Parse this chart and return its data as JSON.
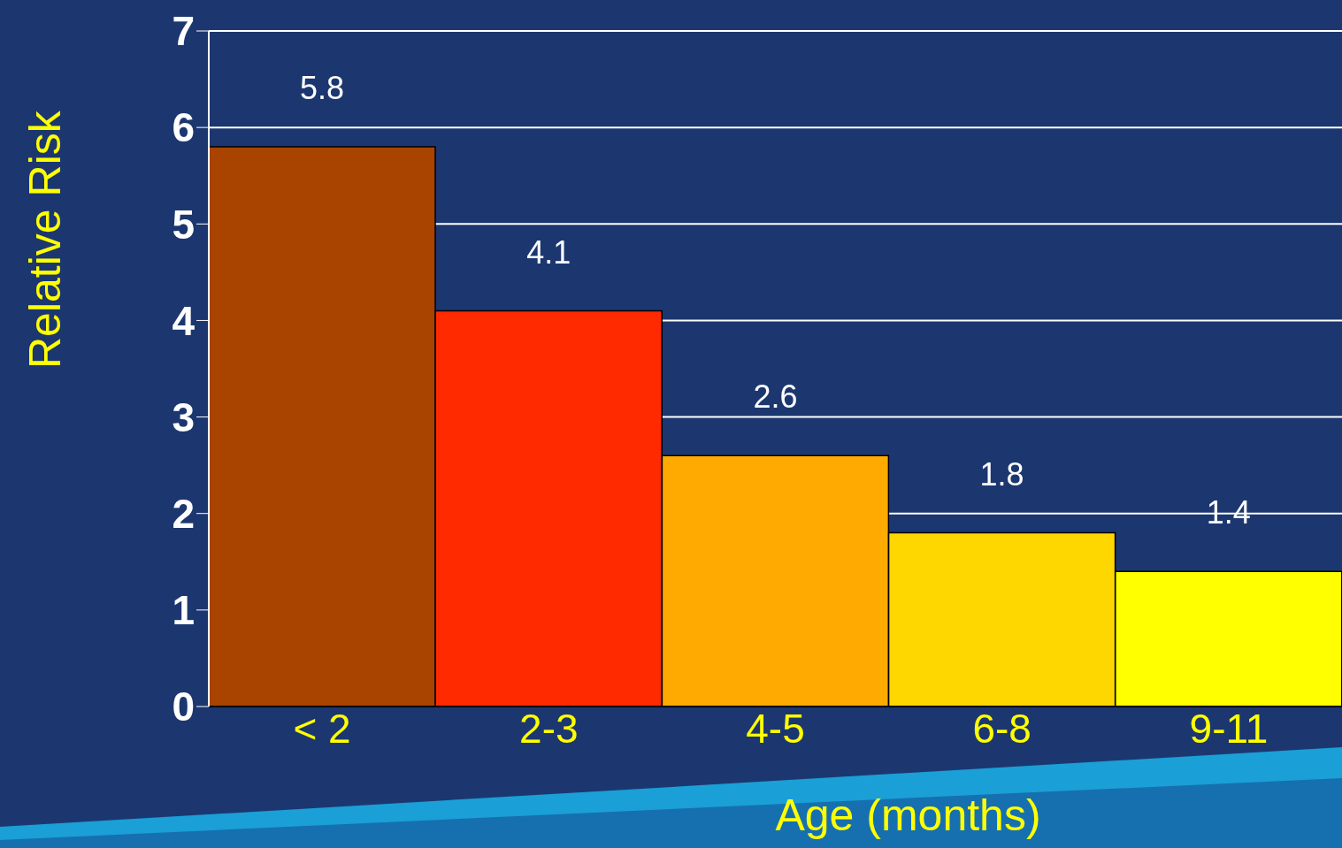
{
  "chart_data": {
    "type": "bar",
    "xlabel": "Age (months)",
    "ylabel": "Relative Risk",
    "categories": [
      "< 2",
      "2-3",
      "4-5",
      "6-8",
      "9-11"
    ],
    "values": [
      5.8,
      4.1,
      2.6,
      1.8,
      1.4
    ],
    "colors": [
      "#a84400",
      "#ff2a00",
      "#ffaa00",
      "#ffd700",
      "#ffff00"
    ],
    "ylim": [
      0,
      7
    ],
    "yticks": [
      0,
      1,
      2,
      3,
      4,
      5,
      6,
      7
    ],
    "grid": "y",
    "data_labels": true
  }
}
